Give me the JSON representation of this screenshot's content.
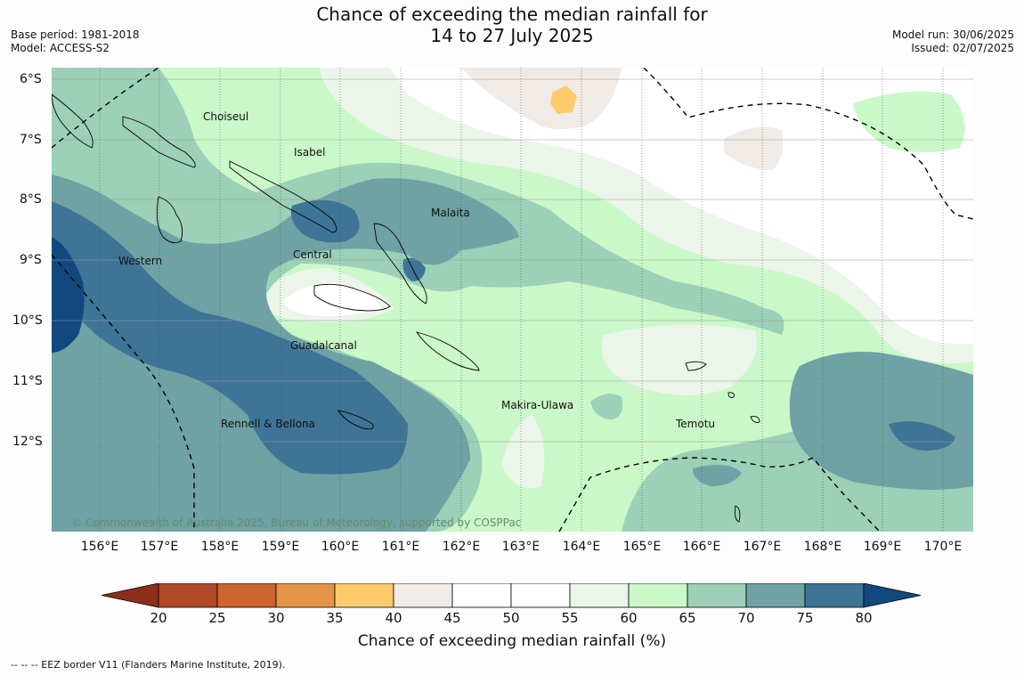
{
  "header": {
    "title_line1": "Chance of exceeding the median rainfall for",
    "title_line2": "14 to 27 July 2025",
    "base_period": "Base period: 1981-2018",
    "model": "Model: ACCESS-S2",
    "model_run": "Model run: 30/06/2025",
    "issued": "Issued: 02/07/2025"
  },
  "map": {
    "lat_labels": [
      "6°S",
      "7°S",
      "8°S",
      "9°S",
      "10°S",
      "11°S",
      "12°S"
    ],
    "lon_labels": [
      "156°E",
      "157°E",
      "158°E",
      "159°E",
      "160°E",
      "161°E",
      "162°E",
      "163°E",
      "164°E",
      "165°E",
      "166°E",
      "167°E",
      "168°E",
      "169°E",
      "170°E"
    ],
    "places": {
      "choiseul": "Choiseul",
      "isabel": "Isabel",
      "malaita": "Malaita",
      "western": "Western",
      "central": "Central",
      "guadalcanal": "Guadalcanal",
      "rennell": "Rennell & Bellona",
      "makira": "Makira-Ulawa",
      "temotu": "Temotu"
    },
    "copyright": "© Commonwealth of Australia 2025, Bureau of Meteorology, supported by COSPPac",
    "colors": {
      "p35_40": "#fecb6a",
      "p40_45": "#f0ebe6",
      "p45_55": "#ffffff",
      "p55_60": "#ebf5e9",
      "p60_65": "#caf8c8",
      "p65_70": "#9cd0b8",
      "p70_75": "#6ea2a4",
      "p75_80": "#3e7496",
      "p80_plus": "#11497f"
    }
  },
  "colorbar": {
    "ticks": [
      "20",
      "25",
      "30",
      "35",
      "40",
      "45",
      "50",
      "55",
      "60",
      "65",
      "70",
      "75",
      "80"
    ],
    "colors": [
      "#8c2f1a",
      "#b04925",
      "#cd6430",
      "#e39446",
      "#fecb6a",
      "#f0ebe6",
      "#ffffff",
      "#ffffff",
      "#ebf5e9",
      "#caf8c8",
      "#9cd0b8",
      "#6ea2a4",
      "#3e7496",
      "#11497f"
    ],
    "label": "Chance of exceeding median rainfall (%)"
  },
  "legend_note": "--  --  -- EEZ border V11 (Flanders Marine Institute, 2019)."
}
